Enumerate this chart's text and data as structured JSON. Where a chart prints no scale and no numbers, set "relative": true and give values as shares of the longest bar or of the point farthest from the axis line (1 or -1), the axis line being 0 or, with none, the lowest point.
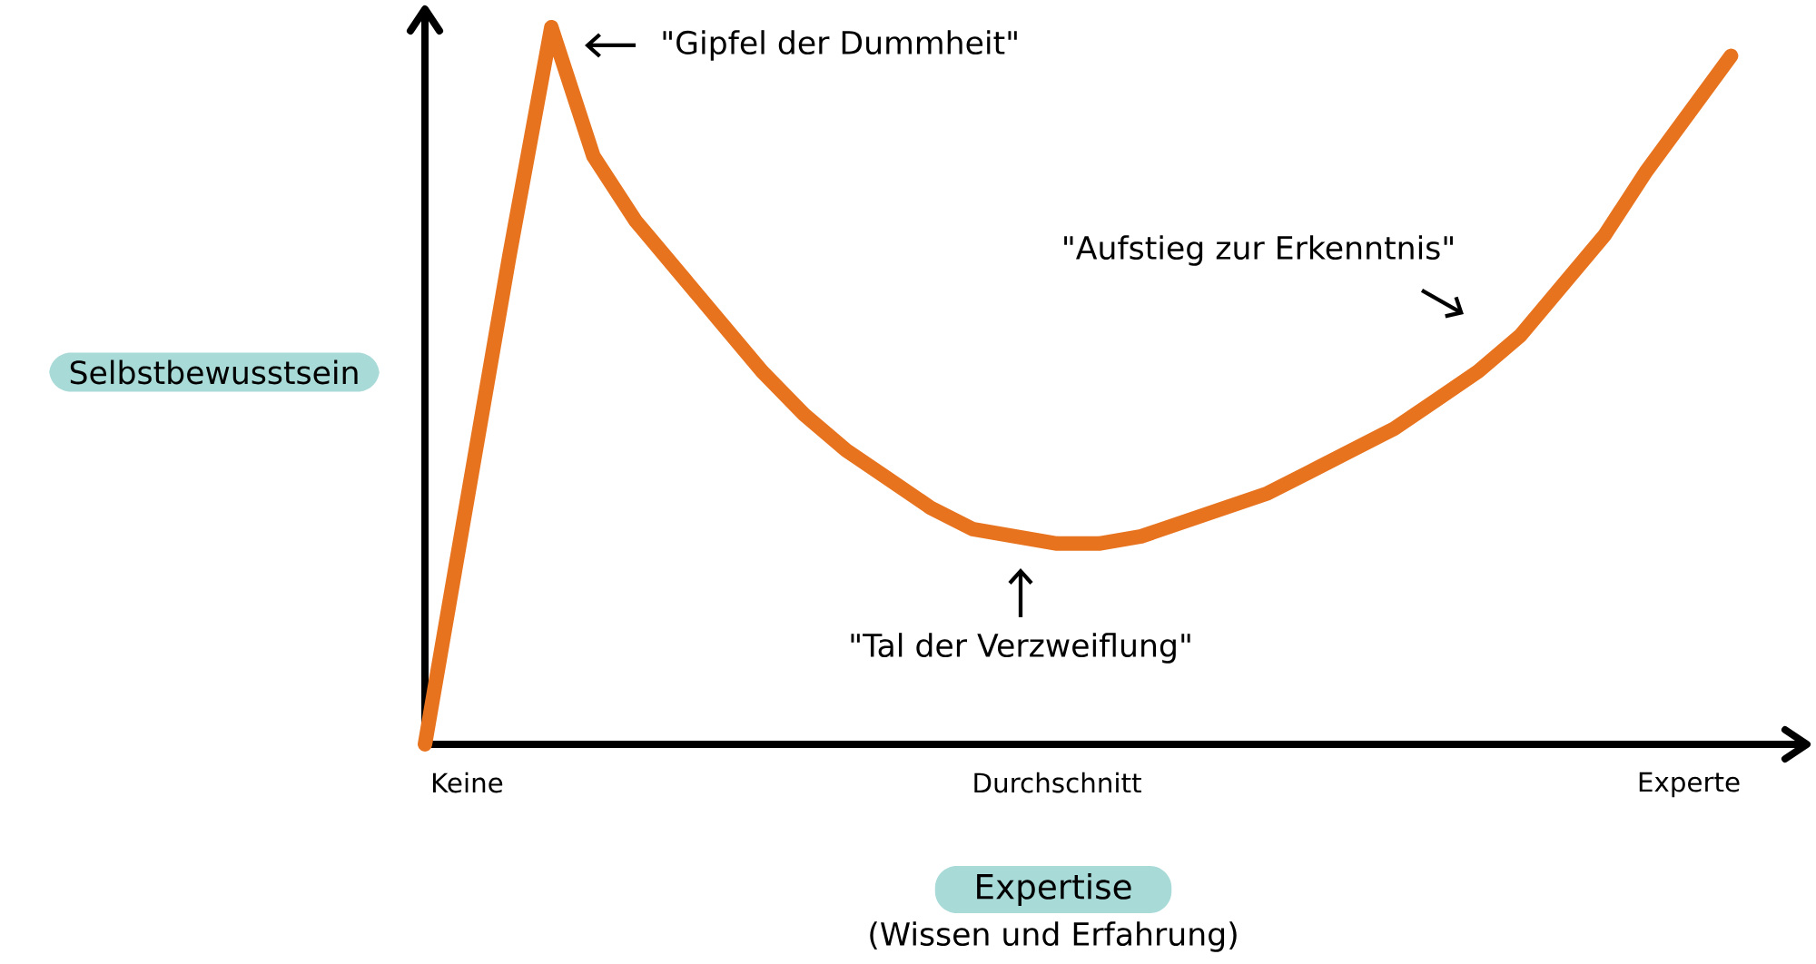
{
  "chart_data": {
    "type": "line",
    "relative": true,
    "color": "#e8731e",
    "marker": "none",
    "line_style": "solid",
    "xlabel": "Expertise",
    "ylabel": "Selbstbewusstsein",
    "categories": [
      null,
      "Keine",
      null,
      null,
      null,
      null,
      null,
      null,
      null,
      null,
      null,
      null,
      null,
      null,
      null,
      "Durchschnitt",
      null,
      null,
      null,
      null,
      null,
      null,
      null,
      null,
      null,
      null,
      null,
      null,
      null,
      null,
      "Experte",
      null
    ],
    "values": [
      0,
      0.34,
      0.68,
      1,
      0.82,
      0.73,
      0.66,
      0.59,
      0.52,
      0.46,
      0.41,
      0.37,
      0.33,
      0.3,
      0.29,
      0.28,
      0.28,
      0.29,
      0.31,
      0.33,
      0.35,
      0.38,
      0.41,
      0.44,
      0.48,
      0.52,
      0.57,
      0.64,
      0.71,
      0.8,
      0.88,
      0.96
    ],
    "annotations": [
      "\"Gipfel der Dummheit\"",
      "\"Tal der Verzweiflung\"",
      "\"Aufstieg zur Erkenntnis\"",
      "(Wissen und Erfahrung)"
    ]
  }
}
